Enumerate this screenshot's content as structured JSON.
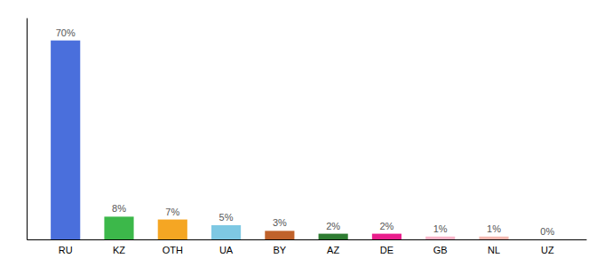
{
  "chart_data": {
    "type": "bar",
    "categories": [
      "RU",
      "KZ",
      "OTH",
      "UA",
      "BY",
      "AZ",
      "DE",
      "GB",
      "NL",
      "UZ"
    ],
    "values": [
      70,
      8,
      7,
      5,
      3,
      2,
      2,
      1,
      1,
      0
    ],
    "value_labels": [
      "70%",
      "8%",
      "7%",
      "5%",
      "3%",
      "2%",
      "2%",
      "1%",
      "1%",
      "0%"
    ],
    "colors": [
      "#4a6fdc",
      "#3cb84a",
      "#f5a623",
      "#7ec8e3",
      "#c0622b",
      "#2e7d32",
      "#e91e8c",
      "#f8b4c8",
      "#f4b8b0",
      "#f4b8b0"
    ],
    "ylim": [
      0,
      78
    ],
    "data_labels": true,
    "tick_labels": "x"
  }
}
